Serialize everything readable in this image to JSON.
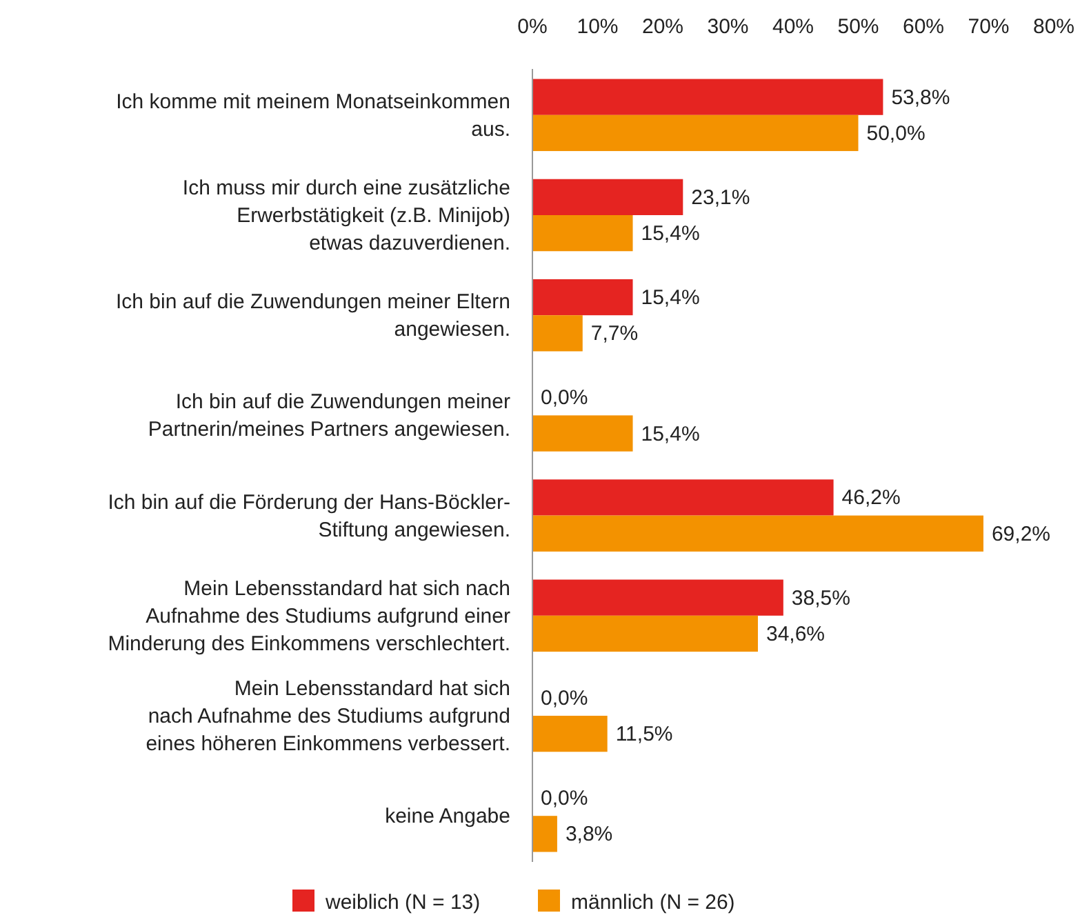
{
  "chart_data": {
    "type": "bar",
    "orientation": "horizontal",
    "categories": [
      "Ich komme mit meinem Monatseinkommen\naus.",
      "Ich muss mir durch eine zusätzliche\nErwerbstätigkeit (z.B. Minijob)\netwas dazuverdienen.",
      "Ich bin auf die Zuwendungen meiner Eltern\nangewiesen.",
      "Ich bin auf die Zuwendungen meiner\nPartnerin/meines Partners angewiesen.",
      "Ich bin auf die Förderung der Hans-Böckler-\nStiftung angewiesen.",
      "Mein Lebensstandard hat sich nach\nAufnahme des Studiums aufgrund einer\nMinderung des Einkommens verschlechtert.",
      "Mein Lebensstandard hat sich\nnach Aufnahme des Studiums aufgrund\neines höheren Einkommens verbessert.",
      "keine Angabe"
    ],
    "series": [
      {
        "name": "weiblich (N = 13)",
        "color": "#e52421",
        "values": [
          53.8,
          23.1,
          15.4,
          0.0,
          46.2,
          38.5,
          0.0,
          0.0
        ],
        "value_labels": [
          "53,8%",
          "23,1%",
          "15,4%",
          "0,0%",
          "46,2%",
          "38,5%",
          "0,0%",
          "0,0%"
        ]
      },
      {
        "name": "männlich (N = 26)",
        "color": "#f39200",
        "values": [
          50.0,
          15.4,
          7.7,
          15.4,
          69.2,
          34.6,
          11.5,
          3.8
        ],
        "value_labels": [
          "50,0%",
          "15,4%",
          "7,7%",
          "15,4%",
          "69,2%",
          "34,6%",
          "11,5%",
          "3,8%"
        ]
      }
    ],
    "xlim": [
      0,
      80
    ],
    "xticks": [
      {
        "value": 0,
        "label": "0%"
      },
      {
        "value": 10,
        "label": "10%"
      },
      {
        "value": 20,
        "label": "20%"
      },
      {
        "value": 30,
        "label": "30%"
      },
      {
        "value": 40,
        "label": "40%"
      },
      {
        "value": 50,
        "label": "50%"
      },
      {
        "value": 60,
        "label": "60%"
      },
      {
        "value": 70,
        "label": "70%"
      },
      {
        "value": 80,
        "label": "80%"
      }
    ],
    "grid": false,
    "legend": "bottom"
  }
}
